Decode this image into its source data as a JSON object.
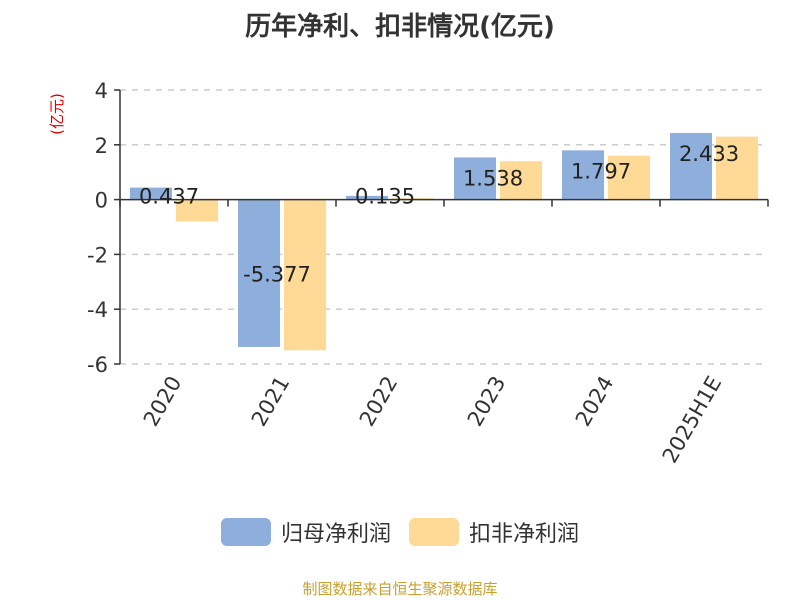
{
  "chart_data": {
    "type": "bar",
    "title": "历年净利、扣非情况(亿元)",
    "ylabel": "(亿元)",
    "categories": [
      "2020",
      "2021",
      "2022",
      "2023",
      "2024",
      "2025H1E"
    ],
    "series": [
      {
        "name": "归母净利润",
        "color": "#8eaedb",
        "values": [
          0.437,
          -5.377,
          0.135,
          1.538,
          1.797,
          2.433
        ]
      },
      {
        "name": "扣非净利润",
        "color": "#ffd996",
        "values": [
          -0.8,
          -5.5,
          0.05,
          1.4,
          1.6,
          2.3
        ]
      }
    ],
    "data_labels": [
      "0.437",
      "-5.377",
      "0.135",
      "1.538",
      "1.797",
      "2.433"
    ],
    "yticks": [
      4,
      2,
      0,
      -2,
      -4,
      -6
    ],
    "ylim": [
      -6,
      4
    ],
    "grid": true,
    "legend_position": "bottom-center",
    "source": "制图数据来自恒生聚源数据库"
  }
}
